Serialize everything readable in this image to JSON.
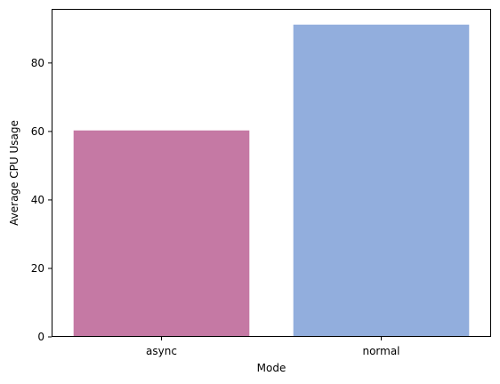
{
  "chart_data": {
    "type": "bar",
    "categories": [
      "async",
      "normal"
    ],
    "values": [
      60.3,
      91.2
    ],
    "colors": [
      "#c579a4",
      "#92aedd"
    ],
    "xlabel": "Mode",
    "ylabel": "Average CPU Usage",
    "ylim": [
      0,
      95.8
    ],
    "yticks": [
      0,
      20,
      40,
      60,
      80
    ],
    "grid": false,
    "legend": "none"
  }
}
